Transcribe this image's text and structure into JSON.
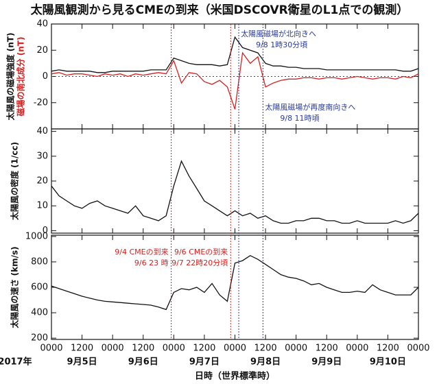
{
  "chart_data": [
    {
      "type": "line",
      "title": "太陽風観測から見るCMEの到来（米国DSCOVR衛星のL1点での観測）",
      "x": [
        0,
        3,
        6,
        9,
        12,
        15,
        18,
        21,
        24,
        27,
        30,
        33,
        36,
        39,
        42,
        45,
        48,
        51,
        54,
        57,
        60,
        63,
        66,
        69,
        72,
        75,
        78,
        81,
        84,
        87,
        90,
        93,
        96,
        99,
        102,
        105,
        108,
        111,
        114,
        117,
        120,
        123,
        126,
        129,
        132,
        135,
        138,
        141,
        144
      ],
      "xlim": [
        0,
        144
      ],
      "series": [
        {
          "name": "太陽風の磁場強度 (nT)",
          "color": "#111111",
          "values": [
            4,
            5,
            4,
            4,
            4,
            4,
            3,
            3,
            4,
            4,
            4,
            4,
            4,
            5,
            5,
            5,
            14,
            12,
            10,
            9,
            9,
            9,
            8,
            9,
            30,
            22,
            20,
            18,
            10,
            8,
            8,
            7,
            7,
            6,
            6,
            6,
            5,
            5,
            5,
            5,
            5,
            5,
            5,
            5,
            5,
            5,
            4,
            4,
            6
          ]
        },
        {
          "name": "磁場の南北成分 (nT)",
          "color": "#d42020",
          "values": [
            2,
            3,
            1,
            2,
            2,
            1,
            0,
            2,
            1,
            2,
            0,
            2,
            1,
            2,
            3,
            2,
            12,
            -5,
            3,
            2,
            -4,
            -6,
            -3,
            -8,
            -25,
            18,
            10,
            15,
            -8,
            -5,
            -3,
            -2,
            -2,
            -1,
            -1,
            -2,
            -1,
            -1,
            -2,
            -1,
            0,
            -1,
            -2,
            -1,
            -1,
            -2,
            0,
            -1,
            2
          ]
        }
      ],
      "ylim": [
        -40,
        40
      ],
      "yticks": [
        -20,
        0,
        20,
        40
      ],
      "zero_line": true
    },
    {
      "type": "line",
      "x": [
        0,
        3,
        6,
        9,
        12,
        15,
        18,
        21,
        24,
        27,
        30,
        33,
        36,
        39,
        42,
        45,
        48,
        51,
        54,
        57,
        60,
        63,
        66,
        69,
        72,
        75,
        78,
        81,
        84,
        87,
        90,
        93,
        96,
        99,
        102,
        105,
        108,
        111,
        114,
        117,
        120,
        123,
        126,
        129,
        132,
        135,
        138,
        141,
        144
      ],
      "xlim": [
        0,
        144
      ],
      "series": [
        {
          "name": "太陽風の密度 (1/cc)",
          "color": "#111111",
          "values": [
            18,
            14,
            12,
            10,
            9,
            11,
            12,
            10,
            9,
            8,
            7,
            10,
            6,
            5,
            4,
            6,
            18,
            28,
            22,
            17,
            12,
            10,
            8,
            6,
            8,
            6,
            7,
            5,
            6,
            4,
            3,
            3,
            4,
            4,
            5,
            5,
            4,
            4,
            3,
            3,
            4,
            3,
            3,
            3,
            3,
            4,
            3,
            4,
            7
          ]
        }
      ],
      "ylim": [
        -1,
        41
      ],
      "yticks": [
        0,
        10,
        20,
        30,
        40
      ]
    },
    {
      "type": "line",
      "x": [
        0,
        3,
        6,
        9,
        12,
        15,
        18,
        21,
        24,
        27,
        30,
        33,
        36,
        39,
        42,
        45,
        48,
        51,
        54,
        57,
        60,
        63,
        66,
        69,
        72,
        75,
        78,
        81,
        84,
        87,
        90,
        93,
        96,
        99,
        102,
        105,
        108,
        111,
        114,
        117,
        120,
        123,
        126,
        129,
        132,
        135,
        138,
        141,
        144
      ],
      "xlim": [
        0,
        144
      ],
      "series": [
        {
          "name": "太陽風の速さ (km/s)",
          "color": "#111111",
          "values": [
            610,
            590,
            570,
            550,
            530,
            515,
            500,
            490,
            485,
            480,
            475,
            470,
            465,
            460,
            445,
            425,
            560,
            590,
            580,
            600,
            560,
            630,
            540,
            490,
            790,
            810,
            850,
            820,
            780,
            740,
            700,
            680,
            670,
            650,
            620,
            630,
            600,
            580,
            560,
            560,
            570,
            560,
            620,
            580,
            560,
            540,
            540,
            540,
            600
          ]
        }
      ],
      "ylim": [
        190,
        1010
      ],
      "yticks": [
        200,
        400,
        600,
        800,
        1000
      ],
      "xticks": [
        {
          "value": 0,
          "label": "0000"
        },
        {
          "value": 12,
          "label": "1200"
        },
        {
          "value": 24,
          "label": "0000"
        },
        {
          "value": 36,
          "label": "1200"
        },
        {
          "value": 48,
          "label": "0000"
        },
        {
          "value": 60,
          "label": "1200"
        },
        {
          "value": 72,
          "label": "0000"
        },
        {
          "value": 84,
          "label": "1200"
        },
        {
          "value": 96,
          "label": "0000"
        },
        {
          "value": 108,
          "label": "1200"
        },
        {
          "value": 120,
          "label": "0000"
        },
        {
          "value": 132,
          "label": "1200"
        },
        {
          "value": 144,
          "label": "0000"
        }
      ],
      "day_ticks": [
        {
          "value": 12,
          "label": "9月5日"
        },
        {
          "value": 36,
          "label": "9月6日"
        },
        {
          "value": 60,
          "label": "9月7日"
        },
        {
          "value": 84,
          "label": "9月8日"
        },
        {
          "value": 108,
          "label": "9月9日"
        },
        {
          "value": 132,
          "label": "9月10日"
        }
      ],
      "year_label": "2017年",
      "xlabel": "日時（世界標準時）"
    }
  ],
  "annotations": [
    {
      "x": 47,
      "color": "#d42020",
      "text": [
        "9/4 CMEの到来",
        "9/6 23 時"
      ]
    },
    {
      "x": 70.33,
      "color": "#d42020",
      "text": [
        "9/6 CMEの到来",
        "9/7 22時20分頃"
      ]
    },
    {
      "x": 73.5,
      "color": "#2a3a9a",
      "text": [
        "太陽風磁場が北向きへ",
        "9/8 1時30分頃"
      ]
    },
    {
      "x": 83,
      "color": "#2a3a9a",
      "text": [
        "太陽風磁場が再度南向きへ",
        "9/8 11時頃"
      ]
    }
  ]
}
